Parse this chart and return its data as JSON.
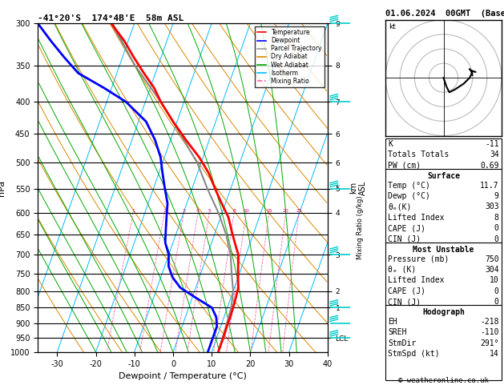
{
  "title_left": "-41°20'S  174°4B'E  58m ASL",
  "title_right": "01.06.2024  00GMT  (Base: 18)",
  "xlabel": "Dewpoint / Temperature (°C)",
  "background_color": "#ffffff",
  "T_MIN": -35,
  "T_MAX": 40,
  "skew_factor": 30,
  "pressure_levels": [
    300,
    350,
    400,
    450,
    500,
    550,
    600,
    650,
    700,
    750,
    800,
    850,
    900,
    950,
    1000
  ],
  "isotherms": [
    -40,
    -30,
    -20,
    -10,
    0,
    10,
    20,
    30,
    40
  ],
  "dry_adiabat_thetas": [
    250,
    260,
    270,
    280,
    290,
    300,
    310,
    320,
    330,
    340,
    350,
    360,
    370,
    380,
    390,
    400,
    410,
    420
  ],
  "wet_adiabat_starts": [
    -20,
    -16,
    -12,
    -8,
    -4,
    0,
    4,
    8,
    12,
    16,
    20,
    24,
    28,
    32
  ],
  "mixing_ratios": [
    1,
    2,
    3,
    4,
    5,
    8,
    10,
    15,
    20,
    25
  ],
  "km_labels": {
    "300": "9",
    "350": "8",
    "400": "7",
    "450": "6",
    "500": "6",
    "550": "5",
    "600": "4",
    "700": "3",
    "800": "2",
    "850": "1",
    "950": "LCL"
  },
  "legend_items": [
    [
      "Temperature",
      "#ff0000",
      "solid"
    ],
    [
      "Dewpoint",
      "#0000ff",
      "solid"
    ],
    [
      "Parcel Trajectory",
      "#999999",
      "solid"
    ],
    [
      "Dry Adiabat",
      "#dd8800",
      "solid"
    ],
    [
      "Wet Adiabat",
      "#00aa00",
      "solid"
    ],
    [
      "Isotherm",
      "#00bbff",
      "solid"
    ],
    [
      "Mixing Ratio",
      "#ff66aa",
      "dashed"
    ]
  ],
  "temp_profile_p": [
    300,
    320,
    340,
    360,
    380,
    400,
    430,
    460,
    490,
    520,
    550,
    580,
    610,
    640,
    670,
    700,
    730,
    760,
    790,
    820,
    850,
    880,
    910,
    940,
    970,
    1000
  ],
  "temp_profile_t": [
    -46,
    -41,
    -37,
    -33,
    -29,
    -26,
    -21,
    -16,
    -11,
    -7,
    -4,
    -1,
    2,
    4,
    6,
    8,
    9,
    10,
    11,
    11.3,
    11.5,
    11.6,
    11.6,
    11.7,
    11.7,
    11.7
  ],
  "dewp_profile_p": [
    300,
    320,
    340,
    360,
    380,
    400,
    430,
    460,
    490,
    520,
    550,
    580,
    610,
    640,
    670,
    700,
    730,
    760,
    790,
    820,
    850,
    880,
    910,
    940,
    970,
    1000
  ],
  "dewp_profile_t": [
    -65,
    -60,
    -55,
    -50,
    -42,
    -35,
    -28,
    -24,
    -21,
    -19,
    -17,
    -15,
    -14,
    -13,
    -12,
    -10,
    -9,
    -7,
    -4,
    1,
    6,
    8,
    9,
    9,
    9,
    9
  ],
  "parcel_profile_p": [
    300,
    350,
    400,
    450,
    500,
    550,
    600,
    650,
    700,
    750,
    800,
    850,
    900,
    950,
    1000
  ],
  "parcel_profile_t": [
    -46,
    -36,
    -26,
    -18,
    -11,
    -6,
    -1,
    3,
    6,
    8,
    10,
    11,
    11.3,
    11.5,
    11.7
  ],
  "info_K": "-11",
  "info_TT": "34",
  "info_PW": "0.69",
  "surf_temp": "11.7",
  "surf_dewp": "9",
  "surf_theta": "303",
  "surf_li": "8",
  "surf_cape": "0",
  "surf_cin": "0",
  "mu_pres": "750",
  "mu_theta": "304",
  "mu_li": "10",
  "mu_cape": "0",
  "mu_cin": "0",
  "hodo_eh": "-218",
  "hodo_sreh": "-110",
  "hodo_stmdir": "291°",
  "hodo_stmspd": "14",
  "hodo_path_u": [
    0,
    1,
    2,
    4,
    7,
    9,
    10,
    9
  ],
  "hodo_path_v": [
    0,
    -3,
    -5,
    -4,
    -2,
    0,
    2,
    3
  ],
  "wind_barb_pressures": [
    300,
    400,
    550,
    700,
    850,
    900,
    950
  ],
  "wind_barb_color": "#00cccc"
}
